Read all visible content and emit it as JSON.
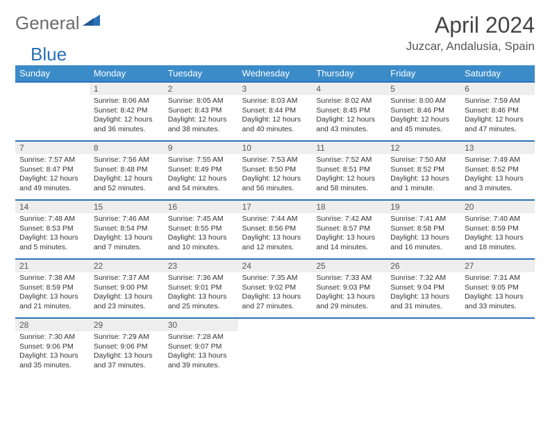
{
  "logo": {
    "text1": "General",
    "text2": "Blue",
    "shape_color": "#2a70b8"
  },
  "title": "April 2024",
  "location": "Juzcar, Andalusia, Spain",
  "colors": {
    "header_bg": "#3b8bc9",
    "header_text": "#ffffff",
    "row_border": "#2a70b8",
    "daynum_bg": "#eeeeee",
    "text": "#333333"
  },
  "daysOfWeek": [
    "Sunday",
    "Monday",
    "Tuesday",
    "Wednesday",
    "Thursday",
    "Friday",
    "Saturday"
  ],
  "weeks": [
    [
      {
        "empty": true
      },
      {
        "n": "1",
        "sr": "8:06 AM",
        "ss": "8:42 PM",
        "dl": "12 hours and 36 minutes."
      },
      {
        "n": "2",
        "sr": "8:05 AM",
        "ss": "8:43 PM",
        "dl": "12 hours and 38 minutes."
      },
      {
        "n": "3",
        "sr": "8:03 AM",
        "ss": "8:44 PM",
        "dl": "12 hours and 40 minutes."
      },
      {
        "n": "4",
        "sr": "8:02 AM",
        "ss": "8:45 PM",
        "dl": "12 hours and 43 minutes."
      },
      {
        "n": "5",
        "sr": "8:00 AM",
        "ss": "8:46 PM",
        "dl": "12 hours and 45 minutes."
      },
      {
        "n": "6",
        "sr": "7:59 AM",
        "ss": "8:46 PM",
        "dl": "12 hours and 47 minutes."
      }
    ],
    [
      {
        "n": "7",
        "sr": "7:57 AM",
        "ss": "8:47 PM",
        "dl": "12 hours and 49 minutes."
      },
      {
        "n": "8",
        "sr": "7:56 AM",
        "ss": "8:48 PM",
        "dl": "12 hours and 52 minutes."
      },
      {
        "n": "9",
        "sr": "7:55 AM",
        "ss": "8:49 PM",
        "dl": "12 hours and 54 minutes."
      },
      {
        "n": "10",
        "sr": "7:53 AM",
        "ss": "8:50 PM",
        "dl": "12 hours and 56 minutes."
      },
      {
        "n": "11",
        "sr": "7:52 AM",
        "ss": "8:51 PM",
        "dl": "12 hours and 58 minutes."
      },
      {
        "n": "12",
        "sr": "7:50 AM",
        "ss": "8:52 PM",
        "dl": "13 hours and 1 minute."
      },
      {
        "n": "13",
        "sr": "7:49 AM",
        "ss": "8:52 PM",
        "dl": "13 hours and 3 minutes."
      }
    ],
    [
      {
        "n": "14",
        "sr": "7:48 AM",
        "ss": "8:53 PM",
        "dl": "13 hours and 5 minutes."
      },
      {
        "n": "15",
        "sr": "7:46 AM",
        "ss": "8:54 PM",
        "dl": "13 hours and 7 minutes."
      },
      {
        "n": "16",
        "sr": "7:45 AM",
        "ss": "8:55 PM",
        "dl": "13 hours and 10 minutes."
      },
      {
        "n": "17",
        "sr": "7:44 AM",
        "ss": "8:56 PM",
        "dl": "13 hours and 12 minutes."
      },
      {
        "n": "18",
        "sr": "7:42 AM",
        "ss": "8:57 PM",
        "dl": "13 hours and 14 minutes."
      },
      {
        "n": "19",
        "sr": "7:41 AM",
        "ss": "8:58 PM",
        "dl": "13 hours and 16 minutes."
      },
      {
        "n": "20",
        "sr": "7:40 AM",
        "ss": "8:59 PM",
        "dl": "13 hours and 18 minutes."
      }
    ],
    [
      {
        "n": "21",
        "sr": "7:38 AM",
        "ss": "8:59 PM",
        "dl": "13 hours and 21 minutes."
      },
      {
        "n": "22",
        "sr": "7:37 AM",
        "ss": "9:00 PM",
        "dl": "13 hours and 23 minutes."
      },
      {
        "n": "23",
        "sr": "7:36 AM",
        "ss": "9:01 PM",
        "dl": "13 hours and 25 minutes."
      },
      {
        "n": "24",
        "sr": "7:35 AM",
        "ss": "9:02 PM",
        "dl": "13 hours and 27 minutes."
      },
      {
        "n": "25",
        "sr": "7:33 AM",
        "ss": "9:03 PM",
        "dl": "13 hours and 29 minutes."
      },
      {
        "n": "26",
        "sr": "7:32 AM",
        "ss": "9:04 PM",
        "dl": "13 hours and 31 minutes."
      },
      {
        "n": "27",
        "sr": "7:31 AM",
        "ss": "9:05 PM",
        "dl": "13 hours and 33 minutes."
      }
    ],
    [
      {
        "n": "28",
        "sr": "7:30 AM",
        "ss": "9:06 PM",
        "dl": "13 hours and 35 minutes."
      },
      {
        "n": "29",
        "sr": "7:29 AM",
        "ss": "9:06 PM",
        "dl": "13 hours and 37 minutes."
      },
      {
        "n": "30",
        "sr": "7:28 AM",
        "ss": "9:07 PM",
        "dl": "13 hours and 39 minutes."
      },
      {
        "empty": true
      },
      {
        "empty": true
      },
      {
        "empty": true
      },
      {
        "empty": true
      }
    ]
  ],
  "labels": {
    "sunrise": "Sunrise:",
    "sunset": "Sunset:",
    "daylight": "Daylight:"
  }
}
